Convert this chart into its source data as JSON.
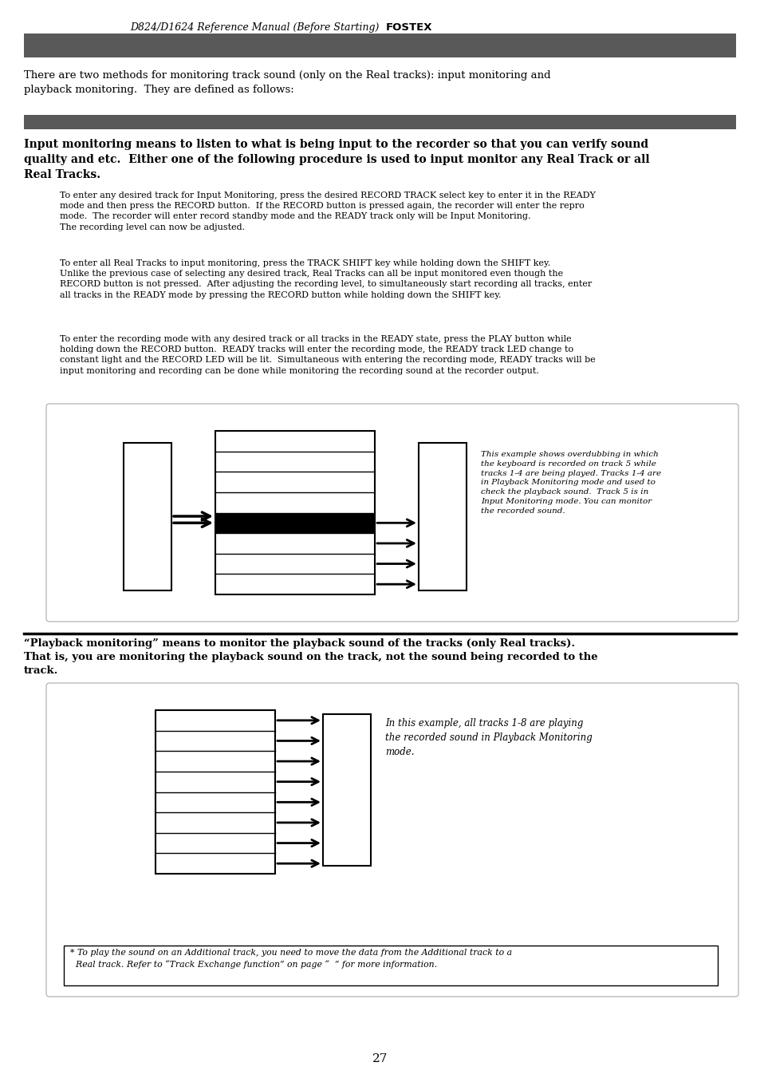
{
  "header_italic": "D824/D1624 Reference Manual (Before Starting) ",
  "header_bold": "FOSTEX",
  "bar1_color": "#595959",
  "bar2_color": "#595959",
  "intro_text": "There are two methods for monitoring track sound (only on the Real tracks): input monitoring and\nplayback monitoring.  They are defined as follows:",
  "section1_body": "Input monitoring means to listen to what is being input to the recorder so that you can verify sound\nquality and etc.  Either one of the following procedure is used to input monitor any Real Track or all\nReal Tracks.",
  "para1_text": "To enter any desired track for Input Monitoring, press the desired RECORD TRACK select key to enter it in the READY\nmode and then press the RECORD button.  If the RECORD button is pressed again, the recorder will enter the repro\nmode.  The recorder will enter record standby mode and the READY track only will be Input Monitoring.\nThe recording level can now be adjusted.",
  "para2_text": "To enter all Real Tracks to input monitoring, press the TRACK SHIFT key while holding down the SHIFT key.\nUnlike the previous case of selecting any desired track, Real Tracks can all be input monitored even though the\nRECORD button is not pressed.  After adjusting the recording level, to simultaneously start recording all tracks, enter\nall tracks in the READY mode by pressing the RECORD button while holding down the SHIFT key.",
  "para3_text": "To enter the recording mode with any desired track or all tracks in the READY state, press the PLAY button while\nholding down the RECORD button.  READY tracks will enter the recording mode, the READY track LED change to\nconstant light and the RECORD LED will be lit.  Simultaneous with entering the recording mode, READY tracks will be\ninput monitoring and recording can be done while monitoring the recording sound at the recorder output.",
  "diag1_caption": "This example shows overdubbing in which\nthe keyboard is recorded on track 5 while\ntracks 1-4 are being played. Tracks 1-4 are\nin Playback Monitoring mode and used to\ncheck the playback sound.  Track 5 is in\nInput Monitoring mode. You can monitor\nthe recorded sound.",
  "section2_body_line1": "“Playback monitoring” means to monitor the playback sound of the tracks (only Real tracks).",
  "section2_body_line2": "That is, you are monitoring the playback sound on the track, not the sound being recorded to the",
  "section2_body_line3": "track.",
  "diag2_caption": "In this example, all tracks 1-8 are playing\nthe recorded sound in Playback Monitoring\nmode.",
  "footnote_text": "* To play the sound on an Additional track, you need to move the data from the Additional track to a\n  Real track. Refer to “Track Exchange function” on page “  ” for more information.",
  "page_number": "27",
  "bg_color": "#ffffff"
}
